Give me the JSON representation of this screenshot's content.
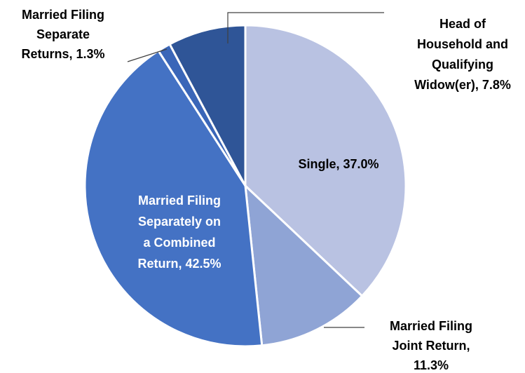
{
  "chart_data": {
    "type": "pie",
    "values": [
      37.0,
      11.3,
      42.5,
      1.3,
      7.8
    ],
    "labels": [
      [
        "Single, 37.0%"
      ],
      [
        "Married Filing",
        "Joint Return,",
        "11.3%"
      ],
      [
        "Married Filing",
        "Separately on",
        "a Combined",
        "Return, 42.5%"
      ],
      [
        "Married Filing",
        "Separate",
        "Returns, 1.3%"
      ],
      [
        "Head of",
        "Household and",
        "Qualifying",
        "Widow(er), 7.8%"
      ]
    ],
    "colors": [
      "#b9c2e2",
      "#8fa4d5",
      "#4472c4",
      "#3a66b8",
      "#2f5597"
    ]
  }
}
